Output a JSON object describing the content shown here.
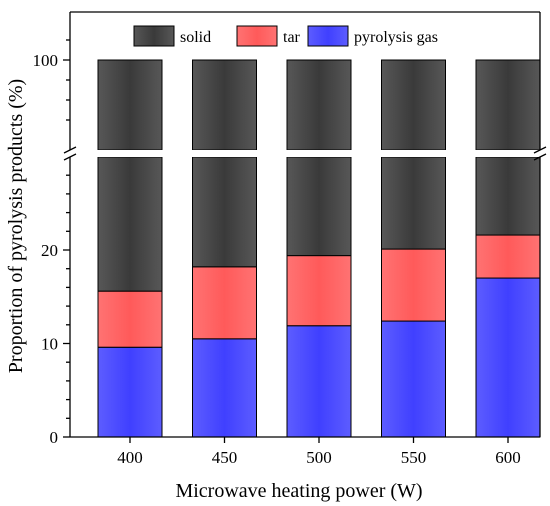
{
  "chart_data": {
    "type": "bar",
    "stacked": true,
    "categories": [
      "400",
      "450",
      "500",
      "550",
      "600"
    ],
    "series": [
      {
        "name": "pyrolysis gas",
        "values": [
          9.6,
          10.5,
          11.9,
          12.4,
          17.0
        ],
        "color": "#4040ff"
      },
      {
        "name": "tar",
        "values": [
          6.0,
          7.7,
          7.5,
          7.7,
          4.6
        ],
        "color": "#ff5a5a"
      },
      {
        "name": "solid",
        "values": [
          84.4,
          81.8,
          80.6,
          79.9,
          78.4
        ],
        "color": "#3a3a3a"
      }
    ],
    "legend_order": [
      "solid",
      "tar",
      "pyrolysis gas"
    ],
    "legend_position": "top",
    "xlabel": "Microwave heating power (W)",
    "ylabel": "Proportion of pyrolysis products (%)",
    "y_axis_break": {
      "lower": [
        0,
        29
      ],
      "upper_tick": 100
    },
    "y_ticks": [
      "0",
      "10",
      "20",
      "100"
    ],
    "grid": false
  }
}
